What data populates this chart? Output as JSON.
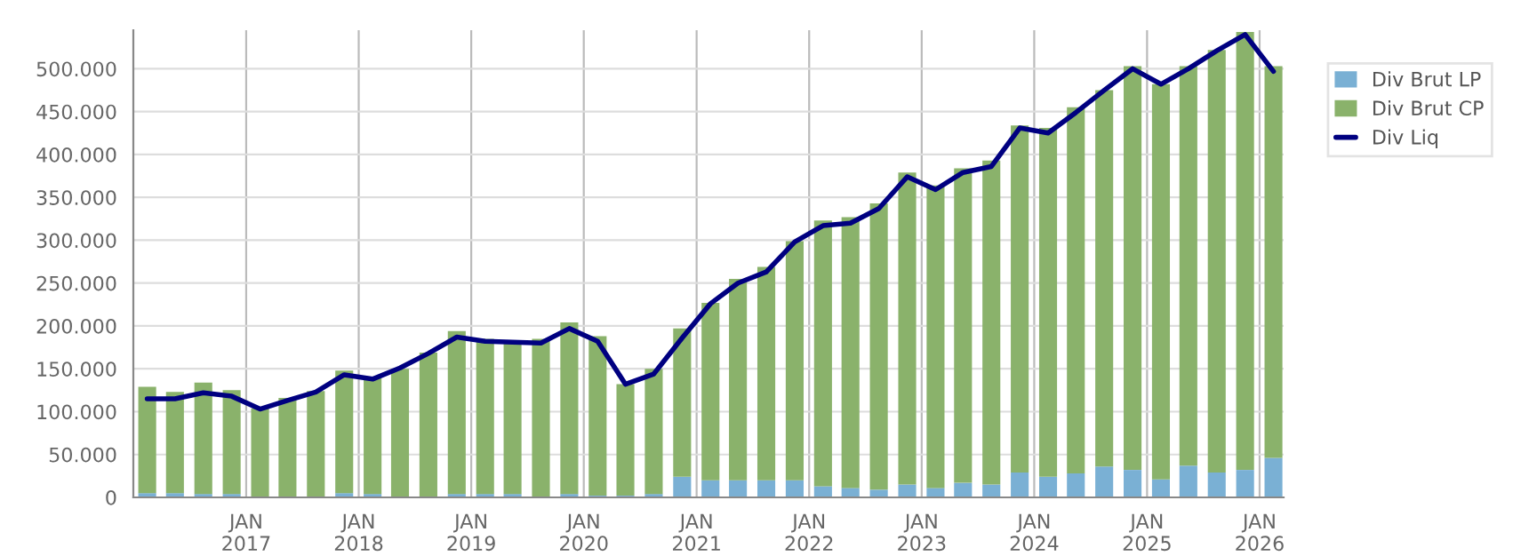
{
  "chart_data": {
    "type": "bar",
    "stacked": true,
    "x": [
      "2016-02-15",
      "2016-05-15",
      "2016-08-15",
      "2016-11-15",
      "2017-02-15",
      "2017-05-15",
      "2017-08-15",
      "2017-11-15",
      "2018-02-15",
      "2018-05-15",
      "2018-08-15",
      "2018-11-15",
      "2019-02-15",
      "2019-05-15",
      "2019-08-15",
      "2019-11-15",
      "2020-02-15",
      "2020-05-15",
      "2020-08-15",
      "2020-11-15",
      "2021-02-15",
      "2021-05-15",
      "2021-08-15",
      "2021-11-15",
      "2022-02-15",
      "2022-05-15",
      "2022-08-15",
      "2022-11-15",
      "2023-02-15",
      "2023-05-15",
      "2023-08-15",
      "2023-11-15",
      "2024-02-15",
      "2024-05-15",
      "2024-08-15",
      "2024-11-15",
      "2025-02-15",
      "2025-05-15",
      "2025-08-15",
      "2025-11-15",
      "2026-02-15"
    ],
    "series": [
      {
        "name": "Div Brut LP",
        "color": "#7ab0d4",
        "values": [
          5000,
          5000,
          4000,
          4000,
          null,
          null,
          null,
          5000,
          4000,
          null,
          null,
          4000,
          4000,
          4000,
          null,
          4000,
          2000,
          2000,
          4000,
          24000,
          20000,
          20000,
          20000,
          20000,
          13000,
          11000,
          9000,
          15000,
          11000,
          17000,
          15000,
          29000,
          24000,
          28000,
          36000,
          32000,
          21000,
          37000,
          29000,
          32000,
          46000
        ]
      },
      {
        "name": "Div Brut CP",
        "color": "#8ab26b",
        "values": [
          124000,
          118000,
          130000,
          121000,
          104000,
          116000,
          124000,
          143000,
          135000,
          150000,
          169000,
          190000,
          181000,
          178000,
          185000,
          200000,
          186000,
          130000,
          146000,
          173000,
          207000,
          235000,
          249000,
          279000,
          310000,
          316000,
          334000,
          364000,
          353000,
          367000,
          378000,
          405000,
          407000,
          427000,
          439000,
          471000,
          461000,
          466000,
          493000,
          511000,
          457000
        ]
      },
      {
        "name": "Div Liq",
        "type": "line",
        "color": "#000080",
        "values": [
          115000,
          115000,
          122000,
          118000,
          103000,
          113000,
          123000,
          143000,
          138000,
          151000,
          168000,
          187000,
          182000,
          181000,
          180000,
          197000,
          182000,
          132000,
          144000,
          186000,
          226000,
          250000,
          263000,
          298000,
          317000,
          320000,
          337000,
          374000,
          359000,
          379000,
          386000,
          431000,
          425000,
          449000,
          475000,
          500000,
          482000,
          500000,
          521000,
          540000,
          497000
        ]
      }
    ],
    "xlim": [
      "2016-01-01",
      "2026-03-20"
    ],
    "xticks": [
      {
        "value": "2017-01-01",
        "label": "JAN\n2017"
      },
      {
        "value": "2018-01-01",
        "label": "JAN\n2018"
      },
      {
        "value": "2019-01-01",
        "label": "JAN\n2019"
      },
      {
        "value": "2020-01-01",
        "label": "JAN\n2020"
      },
      {
        "value": "2021-01-01",
        "label": "JAN\n2021"
      },
      {
        "value": "2022-01-01",
        "label": "JAN\n2022"
      },
      {
        "value": "2023-01-01",
        "label": "JAN\n2023"
      },
      {
        "value": "2024-01-01",
        "label": "JAN\n2024"
      },
      {
        "value": "2025-01-01",
        "label": "JAN\n2025"
      },
      {
        "value": "2026-01-01",
        "label": "JAN\n2026"
      }
    ],
    "ylim": [
      0,
      545000
    ],
    "yticks": [
      {
        "value": 0,
        "label": "0"
      },
      {
        "value": 50000,
        "label": "50.000"
      },
      {
        "value": 100000,
        "label": "100.000"
      },
      {
        "value": 150000,
        "label": "150.000"
      },
      {
        "value": 200000,
        "label": "200.000"
      },
      {
        "value": 250000,
        "label": "250.000"
      },
      {
        "value": 300000,
        "label": "300.000"
      },
      {
        "value": 350000,
        "label": "350.000"
      },
      {
        "value": 400000,
        "label": "400.000"
      },
      {
        "value": 450000,
        "label": "450.000"
      },
      {
        "value": 500000,
        "label": "500.000"
      }
    ],
    "grid": true,
    "legend": "right",
    "line_style": "solid",
    "marker": "none"
  }
}
